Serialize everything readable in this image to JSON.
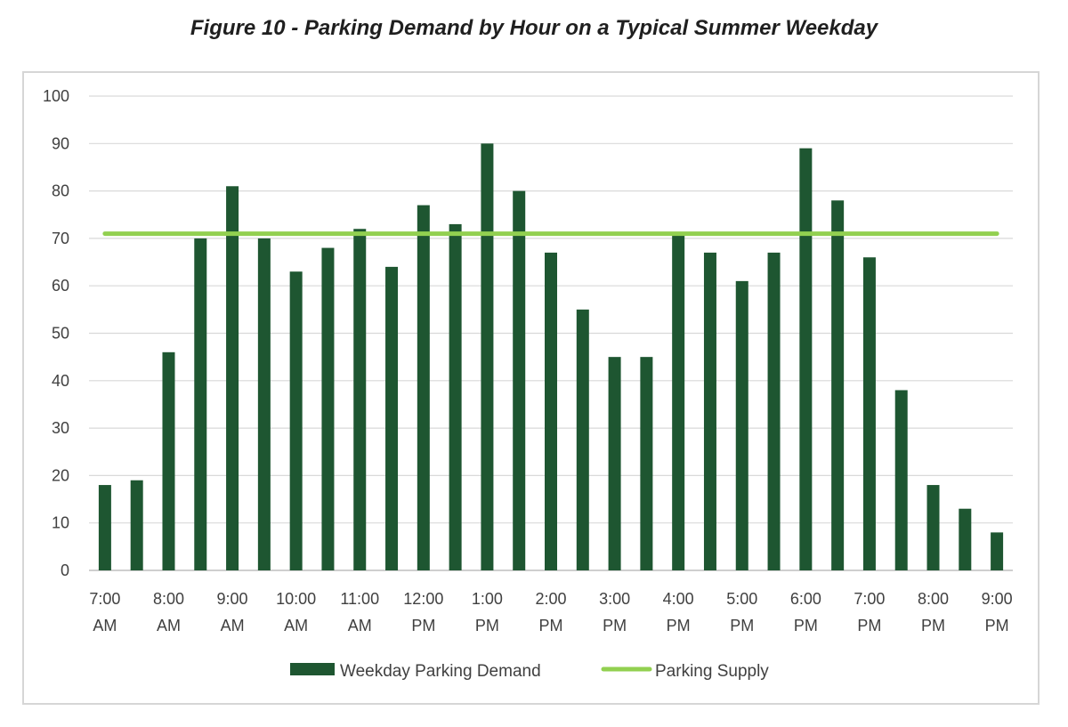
{
  "chart_data": {
    "type": "bar",
    "title": "Figure 10 - Parking Demand by Hour on a Typical Summer Weekday",
    "xlabel": "",
    "ylabel": "",
    "ylim": [
      0,
      100
    ],
    "yticks": [
      0,
      10,
      20,
      30,
      40,
      50,
      60,
      70,
      80,
      90,
      100
    ],
    "grid": true,
    "legend_position": "bottom",
    "x_tick_labels": [
      [
        "7:00",
        "AM"
      ],
      [
        "8:00",
        "AM"
      ],
      [
        "9:00",
        "AM"
      ],
      [
        "10:00",
        "AM"
      ],
      [
        "11:00",
        "AM"
      ],
      [
        "12:00",
        "PM"
      ],
      [
        "1:00",
        "PM"
      ],
      [
        "2:00",
        "PM"
      ],
      [
        "3:00",
        "PM"
      ],
      [
        "4:00",
        "PM"
      ],
      [
        "5:00",
        "PM"
      ],
      [
        "6:00",
        "PM"
      ],
      [
        "7:00",
        "PM"
      ],
      [
        "8:00",
        "PM"
      ],
      [
        "9:00",
        "PM"
      ]
    ],
    "categories": [
      "7:00 AM",
      "7:30 AM",
      "8:00 AM",
      "8:30 AM",
      "9:00 AM",
      "9:30 AM",
      "10:00 AM",
      "10:30 AM",
      "11:00 AM",
      "11:30 AM",
      "12:00 PM",
      "12:30 PM",
      "1:00 PM",
      "1:30 PM",
      "2:00 PM",
      "2:30 PM",
      "3:00 PM",
      "3:30 PM",
      "4:00 PM",
      "4:30 PM",
      "5:00 PM",
      "5:30 PM",
      "6:00 PM",
      "6:30 PM",
      "7:00 PM",
      "7:30 PM",
      "8:00 PM",
      "8:30 PM",
      "9:00 PM"
    ],
    "series": [
      {
        "name": "Weekday Parking Demand",
        "kind": "bar",
        "color": "#1e5631",
        "values": [
          18,
          19,
          46,
          70,
          81,
          70,
          63,
          68,
          72,
          64,
          77,
          73,
          90,
          80,
          67,
          55,
          45,
          45,
          71,
          67,
          61,
          67,
          89,
          78,
          66,
          38,
          18,
          13,
          8
        ]
      },
      {
        "name": "Parking Supply",
        "kind": "line",
        "color": "#92d050",
        "value": 71
      }
    ]
  }
}
